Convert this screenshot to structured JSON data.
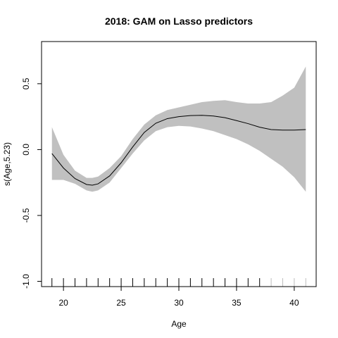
{
  "chart_data": {
    "type": "line",
    "title": "2018: GAM on Lasso predictors",
    "xlabel": "Age",
    "ylabel": "s(Age,5.23)",
    "xlim": [
      18.1,
      41.9
    ],
    "ylim": [
      -1.04,
      0.82
    ],
    "x_ticks": [
      20,
      25,
      30,
      35,
      40
    ],
    "x_tick_labels": [
      "20",
      "25",
      "30",
      "35",
      "40"
    ],
    "y_ticks": [
      -1.0,
      -0.5,
      0.0,
      0.5
    ],
    "y_tick_labels": [
      "-1.0",
      "-0.5",
      "0.0",
      "0.5"
    ],
    "grid": false,
    "colors": {
      "band": "#c0c0c0",
      "line": "#000000",
      "rug_dark": "#000000",
      "rug_light": "#bdbdbd"
    },
    "series": [
      {
        "x": [
          19,
          20,
          21,
          22,
          22.5,
          23,
          24,
          25,
          26,
          27,
          28,
          29,
          30,
          31,
          32,
          33,
          34,
          35,
          36,
          37,
          38,
          39,
          40,
          41
        ],
        "y": [
          -0.03,
          -0.14,
          -0.22,
          -0.265,
          -0.27,
          -0.26,
          -0.2,
          -0.1,
          0.02,
          0.13,
          0.2,
          0.235,
          0.25,
          0.258,
          0.26,
          0.255,
          0.242,
          0.22,
          0.197,
          0.17,
          0.152,
          0.148,
          0.148,
          0.152
        ],
        "lower": [
          -0.23,
          -0.23,
          -0.26,
          -0.31,
          -0.32,
          -0.31,
          -0.25,
          -0.14,
          -0.03,
          0.07,
          0.14,
          0.17,
          0.18,
          0.175,
          0.16,
          0.14,
          0.11,
          0.08,
          0.04,
          -0.01,
          -0.07,
          -0.13,
          -0.21,
          -0.32
        ],
        "upper": [
          0.17,
          -0.04,
          -0.16,
          -0.215,
          -0.215,
          -0.205,
          -0.14,
          -0.05,
          0.08,
          0.19,
          0.26,
          0.3,
          0.32,
          0.34,
          0.36,
          0.37,
          0.375,
          0.36,
          0.35,
          0.35,
          0.36,
          0.41,
          0.47,
          0.63
        ]
      }
    ],
    "rug": {
      "dark": [
        19,
        20,
        21,
        22,
        23,
        24,
        25,
        26,
        27,
        28,
        29,
        30,
        31,
        32,
        33,
        34,
        35,
        36,
        37
      ],
      "light": [
        38,
        39,
        40,
        41
      ]
    }
  }
}
